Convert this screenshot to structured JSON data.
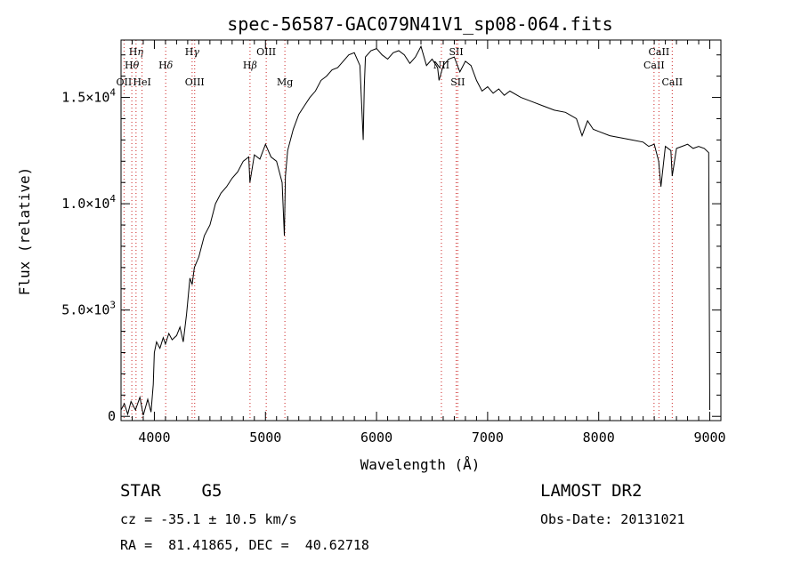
{
  "chart_data": {
    "type": "line",
    "title": "spec-56587-GAC079N41V1_sp08-064.fits",
    "xlabel": "Wavelength (Å)",
    "ylabel": "Flux (relative)",
    "xlim": [
      3700,
      9100
    ],
    "ylim": [
      -200,
      17700
    ],
    "x_ticks": [
      4000,
      5000,
      6000,
      7000,
      8000,
      9000
    ],
    "x_tick_labels": [
      "4000",
      "5000",
      "6000",
      "7000",
      "8000",
      "9000"
    ],
    "y_ticks": [
      0,
      5000,
      10000,
      15000
    ],
    "y_tick_labels": [
      {
        "mant": "0",
        "exp": ""
      },
      {
        "mant": "5.0×10",
        "exp": "3"
      },
      {
        "mant": "1.0×10",
        "exp": "4"
      },
      {
        "mant": "1.5×10",
        "exp": "4"
      }
    ],
    "series": [
      {
        "x": [
          3700,
          3730,
          3760,
          3790,
          3830,
          3870,
          3900,
          3940,
          3970,
          3990,
          4000,
          4020,
          4050,
          4080,
          4100,
          4130,
          4160,
          4200,
          4230,
          4260,
          4290,
          4320,
          4340,
          4360,
          4400,
          4450,
          4500,
          4550,
          4600,
          4650,
          4700,
          4750,
          4800,
          4850,
          4860,
          4900,
          4950,
          5000,
          5050,
          5100,
          5150,
          5170,
          5180,
          5200,
          5250,
          5300,
          5350,
          5400,
          5450,
          5500,
          5550,
          5600,
          5650,
          5700,
          5750,
          5800,
          5850,
          5880,
          5890,
          5900,
          5950,
          6000,
          6050,
          6100,
          6150,
          6200,
          6250,
          6300,
          6350,
          6400,
          6450,
          6500,
          6550,
          6563,
          6600,
          6650,
          6700,
          6750,
          6800,
          6850,
          6900,
          6950,
          7000,
          7050,
          7100,
          7150,
          7200,
          7300,
          7400,
          7500,
          7600,
          7700,
          7800,
          7850,
          7900,
          7950,
          8000,
          8100,
          8200,
          8300,
          8400,
          8450,
          8500,
          8540,
          8560,
          8600,
          8650,
          8662,
          8700,
          8750,
          8800,
          8850,
          8900,
          8950,
          8990,
          9000
        ],
        "y": [
          300,
          600,
          100,
          700,
          300,
          900,
          50,
          800,
          200,
          1500,
          3000,
          3500,
          3200,
          3700,
          3400,
          3900,
          3600,
          3800,
          4200,
          3500,
          4800,
          6500,
          6200,
          7000,
          7500,
          8500,
          9000,
          10000,
          10500,
          10800,
          11200,
          11500,
          12000,
          12200,
          11000,
          12300,
          12100,
          12800,
          12200,
          12000,
          11000,
          8500,
          11300,
          12500,
          13500,
          14200,
          14600,
          15000,
          15300,
          15800,
          16000,
          16300,
          16400,
          16700,
          17000,
          17100,
          16500,
          13000,
          15500,
          16900,
          17200,
          17300,
          17000,
          16800,
          17100,
          17200,
          17000,
          16600,
          16900,
          17400,
          16500,
          16800,
          16400,
          15800,
          16500,
          16800,
          16900,
          16200,
          16700,
          16500,
          15800,
          15300,
          15500,
          15200,
          15400,
          15100,
          15300,
          15000,
          14800,
          14600,
          14400,
          14300,
          14000,
          13200,
          13900,
          13500,
          13400,
          13200,
          13100,
          13000,
          12900,
          12700,
          12800,
          12000,
          10800,
          12700,
          12500,
          11300,
          12600,
          12700,
          12800,
          12600,
          12700,
          12600,
          12400,
          300
        ]
      }
    ],
    "lines": [
      {
        "label": "Hη",
        "labelHtml": "H<tspan font-style=\"italic\">η</tspan>",
        "x": 3835,
        "row": 1
      },
      {
        "label": "Hθ",
        "labelHtml": "H<tspan font-style=\"italic\">θ</tspan>",
        "x": 3797,
        "row": 2
      },
      {
        "label": "OII",
        "labelHtml": "OII",
        "x": 3727,
        "row": 3
      },
      {
        "label": "HeI",
        "labelHtml": "HeI",
        "x": 3889,
        "row": 3
      },
      {
        "label": "Hδ",
        "labelHtml": "H<tspan font-style=\"italic\">δ</tspan>",
        "x": 4102,
        "row": 2
      },
      {
        "label": "Hγ",
        "labelHtml": "H<tspan font-style=\"italic\">γ</tspan>",
        "x": 4340,
        "row": 1
      },
      {
        "label": "OIII",
        "labelHtml": "OIII",
        "x": 4363,
        "row": 3
      },
      {
        "label": "Hβ",
        "labelHtml": "H<tspan font-style=\"italic\">β</tspan>",
        "x": 4861,
        "row": 2
      },
      {
        "label": "OIII",
        "labelHtml": "OIII",
        "x": 5007,
        "row": 1
      },
      {
        "label": "Mg",
        "labelHtml": "Mg",
        "x": 5175,
        "row": 3
      },
      {
        "label": "NII",
        "labelHtml": "NII",
        "x": 6584,
        "row": 2
      },
      {
        "label": "SII",
        "labelHtml": "SII",
        "x": 6717,
        "row": 1
      },
      {
        "label": "SII",
        "labelHtml": "SII",
        "x": 6731,
        "row": 3
      },
      {
        "label": "CaII",
        "labelHtml": "CaII",
        "x": 8498,
        "row": 2
      },
      {
        "label": "CaII",
        "labelHtml": "CaII",
        "x": 8542,
        "row": 1
      },
      {
        "label": "CaII",
        "labelHtml": "CaII",
        "x": 8662,
        "row": 3
      }
    ]
  },
  "info": {
    "class": "STAR    G5",
    "survey": "LAMOST DR2",
    "cz": "cz = -35.1 ± 10.5 km/s",
    "obs_date": "Obs-Date: 20131021",
    "radec": "RA =  81.41865, DEC =  40.62718"
  }
}
